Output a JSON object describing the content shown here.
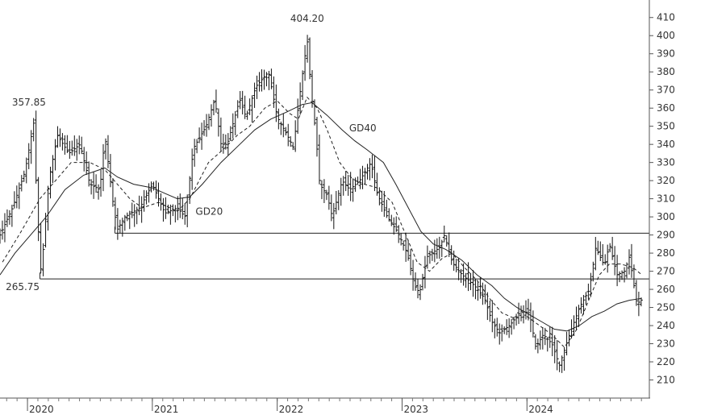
{
  "chart_data": {
    "type": "line",
    "subtype": "ohlc-bars",
    "x_axis": {
      "tick_labels": [
        "2020",
        "2021",
        "2022",
        "2023",
        "2024"
      ],
      "tick_years": [
        2020,
        2021,
        2022,
        2023,
        2024
      ],
      "xlim": [
        2019.78,
        2024.98
      ]
    },
    "y_axis": {
      "position": "right",
      "tick_values": [
        210,
        220,
        230,
        240,
        250,
        260,
        270,
        280,
        290,
        300,
        310,
        320,
        330,
        340,
        350,
        360,
        370,
        380,
        390,
        400,
        410
      ],
      "tick_labels": [
        "210",
        "220",
        "230",
        "240",
        "250",
        "260",
        "270",
        "280",
        "290",
        "300",
        "310",
        "320",
        "330",
        "340",
        "350",
        "360",
        "370",
        "380",
        "390",
        "400",
        "410"
      ],
      "ylim": [
        200,
        417
      ]
    },
    "grid": false,
    "legend": "none",
    "price_anchors": [
      [
        2019.78,
        290
      ],
      [
        2019.88,
        305
      ],
      [
        2019.98,
        325
      ],
      [
        2020.05,
        352
      ],
      [
        2020.08,
        300
      ],
      [
        2020.11,
        268
      ],
      [
        2020.17,
        320
      ],
      [
        2020.24,
        345
      ],
      [
        2020.33,
        335
      ],
      [
        2020.42,
        340
      ],
      [
        2020.5,
        318
      ],
      [
        2020.58,
        315
      ],
      [
        2020.62,
        345
      ],
      [
        2020.69,
        305
      ],
      [
        2020.72,
        293
      ],
      [
        2020.78,
        300
      ],
      [
        2020.9,
        305
      ],
      [
        2021.0,
        318
      ],
      [
        2021.1,
        302
      ],
      [
        2021.2,
        305
      ],
      [
        2021.26,
        300
      ],
      [
        2021.33,
        338
      ],
      [
        2021.43,
        350
      ],
      [
        2021.5,
        365
      ],
      [
        2021.55,
        340
      ],
      [
        2021.6,
        340
      ],
      [
        2021.7,
        365
      ],
      [
        2021.75,
        355
      ],
      [
        2021.83,
        372
      ],
      [
        2021.93,
        380
      ],
      [
        2022.0,
        355
      ],
      [
        2022.08,
        345
      ],
      [
        2022.13,
        338
      ],
      [
        2022.17,
        362
      ],
      [
        2022.24,
        398
      ],
      [
        2022.27,
        370
      ],
      [
        2022.31,
        345
      ],
      [
        2022.34,
        318
      ],
      [
        2022.4,
        312
      ],
      [
        2022.44,
        300
      ],
      [
        2022.52,
        320
      ],
      [
        2022.58,
        315
      ],
      [
        2022.66,
        320
      ],
      [
        2022.75,
        330
      ],
      [
        2022.8,
        313
      ],
      [
        2022.88,
        300
      ],
      [
        2022.96,
        292
      ],
      [
        2023.04,
        280
      ],
      [
        2023.1,
        262
      ],
      [
        2023.14,
        258
      ],
      [
        2023.2,
        278
      ],
      [
        2023.3,
        283
      ],
      [
        2023.34,
        290
      ],
      [
        2023.4,
        275
      ],
      [
        2023.48,
        268
      ],
      [
        2023.58,
        262
      ],
      [
        2023.66,
        255
      ],
      [
        2023.72,
        242
      ],
      [
        2023.78,
        236
      ],
      [
        2023.86,
        240
      ],
      [
        2023.95,
        248
      ],
      [
        2024.02,
        247
      ],
      [
        2024.07,
        228
      ],
      [
        2024.13,
        235
      ],
      [
        2024.2,
        230
      ],
      [
        2024.26,
        218
      ],
      [
        2024.34,
        235
      ],
      [
        2024.42,
        250
      ],
      [
        2024.5,
        260
      ],
      [
        2024.55,
        283
      ],
      [
        2024.62,
        273
      ],
      [
        2024.66,
        285
      ],
      [
        2024.72,
        268
      ],
      [
        2024.78,
        270
      ],
      [
        2024.82,
        278
      ],
      [
        2024.88,
        252
      ],
      [
        2024.93,
        255
      ]
    ],
    "series": [
      {
        "name": "GD20",
        "style": "dashed",
        "color": "#222222",
        "points": [
          [
            2019.8,
            275
          ],
          [
            2019.95,
            292
          ],
          [
            2020.1,
            310
          ],
          [
            2020.2,
            318
          ],
          [
            2020.35,
            330
          ],
          [
            2020.5,
            330
          ],
          [
            2020.62,
            326
          ],
          [
            2020.72,
            318
          ],
          [
            2020.82,
            310
          ],
          [
            2020.92,
            305
          ],
          [
            2021.05,
            308
          ],
          [
            2021.2,
            303
          ],
          [
            2021.3,
            310
          ],
          [
            2021.45,
            330
          ],
          [
            2021.58,
            338
          ],
          [
            2021.68,
            345
          ],
          [
            2021.78,
            350
          ],
          [
            2021.9,
            360
          ],
          [
            2022.0,
            364
          ],
          [
            2022.1,
            357
          ],
          [
            2022.17,
            354
          ],
          [
            2022.24,
            366
          ],
          [
            2022.32,
            360
          ],
          [
            2022.4,
            348
          ],
          [
            2022.5,
            330
          ],
          [
            2022.6,
            321
          ],
          [
            2022.7,
            318
          ],
          [
            2022.8,
            316
          ],
          [
            2022.92,
            308
          ],
          [
            2023.03,
            290
          ],
          [
            2023.12,
            275
          ],
          [
            2023.22,
            270
          ],
          [
            2023.32,
            277
          ],
          [
            2023.4,
            280
          ],
          [
            2023.5,
            272
          ],
          [
            2023.6,
            265
          ],
          [
            2023.7,
            255
          ],
          [
            2023.8,
            247
          ],
          [
            2023.9,
            244
          ],
          [
            2024.0,
            245
          ],
          [
            2024.1,
            240
          ],
          [
            2024.2,
            235
          ],
          [
            2024.3,
            228
          ],
          [
            2024.4,
            238
          ],
          [
            2024.5,
            255
          ],
          [
            2024.58,
            268
          ],
          [
            2024.66,
            274
          ],
          [
            2024.75,
            274
          ],
          [
            2024.85,
            272
          ],
          [
            2024.92,
            268
          ]
        ]
      },
      {
        "name": "GD40",
        "style": "solid",
        "color": "#222222",
        "points": [
          [
            2019.78,
            268
          ],
          [
            2019.9,
            280
          ],
          [
            2020.05,
            292
          ],
          [
            2020.15,
            300
          ],
          [
            2020.3,
            315
          ],
          [
            2020.45,
            323
          ],
          [
            2020.62,
            327
          ],
          [
            2020.72,
            322
          ],
          [
            2020.85,
            318
          ],
          [
            2021.0,
            316
          ],
          [
            2021.1,
            313
          ],
          [
            2021.2,
            310
          ],
          [
            2021.3,
            311
          ],
          [
            2021.4,
            318
          ],
          [
            2021.55,
            330
          ],
          [
            2021.7,
            340
          ],
          [
            2021.82,
            348
          ],
          [
            2021.95,
            354
          ],
          [
            2022.08,
            358
          ],
          [
            2022.2,
            362
          ],
          [
            2022.28,
            363
          ],
          [
            2022.4,
            356
          ],
          [
            2022.52,
            348
          ],
          [
            2022.62,
            342
          ],
          [
            2022.72,
            337
          ],
          [
            2022.85,
            330
          ],
          [
            2022.95,
            318
          ],
          [
            2023.05,
            305
          ],
          [
            2023.15,
            292
          ],
          [
            2023.25,
            285
          ],
          [
            2023.35,
            282
          ],
          [
            2023.48,
            276
          ],
          [
            2023.6,
            268
          ],
          [
            2023.72,
            262
          ],
          [
            2023.82,
            255
          ],
          [
            2023.92,
            250
          ],
          [
            2024.02,
            246
          ],
          [
            2024.12,
            242
          ],
          [
            2024.22,
            238
          ],
          [
            2024.32,
            237
          ],
          [
            2024.42,
            240
          ],
          [
            2024.52,
            245
          ],
          [
            2024.62,
            248
          ],
          [
            2024.72,
            252
          ],
          [
            2024.82,
            254
          ],
          [
            2024.92,
            255
          ]
        ]
      }
    ],
    "support_lines": [
      {
        "value": 291,
        "x_from": 2020.7,
        "x_to": 2024.98
      },
      {
        "value": 265.75,
        "x_from": 2020.1,
        "x_to": 2024.98
      }
    ],
    "annotations": [
      {
        "text": "404.20",
        "x": 2022.24,
        "y": 404.2,
        "anchor": "above"
      },
      {
        "text": "357.85",
        "x": 2020.07,
        "y": 357.85,
        "anchor": "above-left"
      },
      {
        "text": "265.75",
        "x": 2020.11,
        "y": 265.75,
        "anchor": "below-left"
      },
      {
        "text": "GD40",
        "x": 2022.55,
        "y": 349,
        "anchor": "right"
      },
      {
        "text": "GD20",
        "x": 2021.32,
        "y": 303,
        "anchor": "right"
      }
    ]
  }
}
